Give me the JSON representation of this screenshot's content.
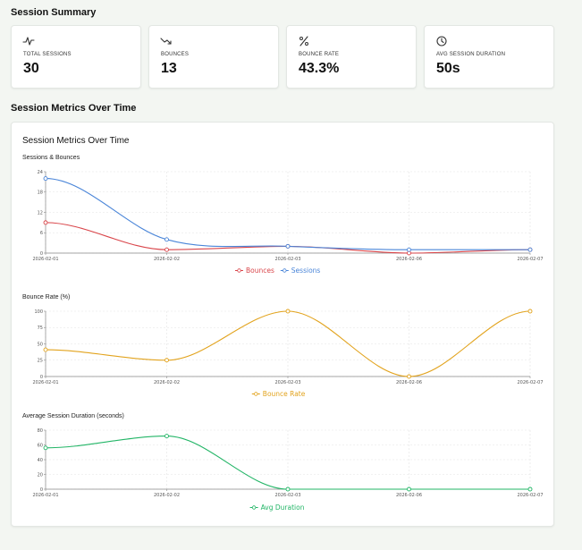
{
  "summary": {
    "title": "Session Summary",
    "cards": [
      {
        "label": "TOTAL SESSIONS",
        "value": "30",
        "icon": "activity-icon"
      },
      {
        "label": "BOUNCES",
        "value": "13",
        "icon": "trending-down-icon"
      },
      {
        "label": "BOUNCE RATE",
        "value": "43.3%",
        "icon": "percent-icon"
      },
      {
        "label": "AVG SESSION DURATION",
        "value": "50s",
        "icon": "clock-icon"
      }
    ]
  },
  "metrics": {
    "section_title": "Session Metrics Over Time",
    "panel_title": "Session Metrics Over Time"
  },
  "chart_data": [
    {
      "type": "line",
      "title": "Sessions & Bounces",
      "x": [
        "2026-02-01",
        "2026-02-02",
        "2026-02-03",
        "2026-02-06",
        "2026-02-07"
      ],
      "ylim": [
        0,
        24
      ],
      "yticks": [
        0,
        6,
        12,
        18,
        24
      ],
      "grid": true,
      "legend": "bottom",
      "series": [
        {
          "name": "Bounces",
          "color": "#d9454a",
          "values": [
            9,
            1,
            2,
            0,
            1
          ]
        },
        {
          "name": "Sessions",
          "color": "#4a85d8",
          "values": [
            22,
            4,
            2,
            1,
            1
          ]
        }
      ]
    },
    {
      "type": "line",
      "title": "Bounce Rate (%)",
      "x": [
        "2026-02-01",
        "2026-02-02",
        "2026-02-03",
        "2026-02-06",
        "2026-02-07"
      ],
      "ylim": [
        0,
        100
      ],
      "yticks": [
        0,
        25,
        50,
        75,
        100
      ],
      "grid": true,
      "legend": "bottom",
      "series": [
        {
          "name": "Bounce Rate",
          "color": "#e2a31d",
          "values": [
            41,
            25,
            100,
            0,
            100
          ]
        }
      ]
    },
    {
      "type": "line",
      "title": "Average Session Duration (seconds)",
      "x": [
        "2026-02-01",
        "2026-02-02",
        "2026-02-03",
        "2026-02-06",
        "2026-02-07"
      ],
      "ylim": [
        0,
        80
      ],
      "yticks": [
        0,
        20,
        40,
        60,
        80
      ],
      "grid": true,
      "legend": "bottom",
      "series": [
        {
          "name": "Avg Duration",
          "color": "#22b566",
          "values": [
            56,
            72,
            0,
            0,
            0
          ]
        }
      ]
    }
  ]
}
